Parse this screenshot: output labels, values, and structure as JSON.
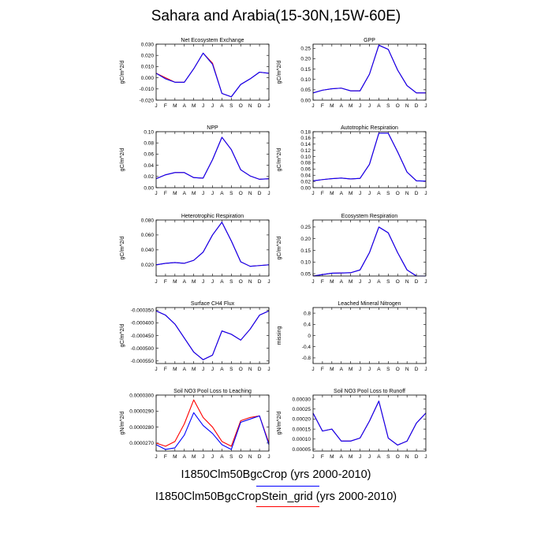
{
  "title": "Sahara and Arabia(15-30N,15W-60E)",
  "legend": [
    {
      "name": "I1850Clm50BgcCrop (yrs 2000-2010)",
      "color": "#0000ff"
    },
    {
      "name": "I1850Clm50BgcCropStein_grid (yrs 2000-2010)",
      "color": "#ff0000"
    }
  ],
  "chart_data": [
    {
      "type": "line",
      "title": "Net Ecosystem Exchange",
      "ylabel": "gC/m^2/d",
      "x": [
        "J",
        "F",
        "M",
        "A",
        "M",
        "J",
        "J",
        "A",
        "S",
        "O",
        "N",
        "D",
        "J"
      ],
      "ylim": [
        -0.02,
        0.03
      ],
      "yticks": [
        -0.02,
        -0.01,
        0.0,
        0.01,
        0.02,
        0.03
      ],
      "ytick_labels": [
        "-0.020",
        "-0.010",
        "0.000",
        "0.010",
        "0.020",
        "0.030"
      ],
      "series": [
        {
          "color": "#ff0000",
          "values": [
            0.004,
            0.0,
            -0.004,
            -0.004,
            0.008,
            0.022,
            0.013,
            -0.014,
            -0.017,
            -0.006,
            -0.001,
            0.005,
            0.004
          ]
        },
        {
          "color": "#0000ff",
          "values": [
            0.004,
            -0.001,
            -0.004,
            -0.004,
            0.008,
            0.022,
            0.012,
            -0.014,
            -0.017,
            -0.006,
            -0.001,
            0.005,
            0.004
          ]
        }
      ]
    },
    {
      "type": "line",
      "title": "GPP",
      "ylabel": "gC/m^2/d",
      "x": [
        "J",
        "F",
        "M",
        "A",
        "M",
        "J",
        "J",
        "A",
        "S",
        "O",
        "N",
        "D",
        "J"
      ],
      "ylim": [
        0.0,
        0.27
      ],
      "yticks": [
        0.0,
        0.05,
        0.1,
        0.15,
        0.2,
        0.25
      ],
      "ytick_labels": [
        "0.00",
        "0.05",
        "0.10",
        "0.15",
        "0.20",
        "0.25"
      ],
      "series": [
        {
          "color": "#ff0000",
          "values": [
            0.035,
            0.048,
            0.055,
            0.058,
            0.045,
            0.045,
            0.125,
            0.265,
            0.245,
            0.145,
            0.07,
            0.035,
            0.035
          ]
        },
        {
          "color": "#0000ff",
          "values": [
            0.035,
            0.048,
            0.055,
            0.058,
            0.045,
            0.045,
            0.125,
            0.265,
            0.245,
            0.145,
            0.07,
            0.035,
            0.035
          ]
        }
      ]
    },
    {
      "type": "line",
      "title": "NPP",
      "ylabel": "gC/m^2/d",
      "x": [
        "J",
        "F",
        "M",
        "A",
        "M",
        "J",
        "J",
        "A",
        "S",
        "O",
        "N",
        "D",
        "J"
      ],
      "ylim": [
        0.0,
        0.1
      ],
      "yticks": [
        0.0,
        0.02,
        0.04,
        0.06,
        0.08,
        0.1
      ],
      "ytick_labels": [
        "0.00",
        "0.02",
        "0.04",
        "0.06",
        "0.08",
        "0.10"
      ],
      "series": [
        {
          "color": "#ff0000",
          "values": [
            0.016,
            0.023,
            0.027,
            0.027,
            0.018,
            0.017,
            0.05,
            0.09,
            0.068,
            0.032,
            0.021,
            0.015,
            0.016
          ]
        },
        {
          "color": "#0000ff",
          "values": [
            0.016,
            0.023,
            0.027,
            0.027,
            0.018,
            0.017,
            0.05,
            0.09,
            0.068,
            0.032,
            0.021,
            0.015,
            0.016
          ]
        }
      ]
    },
    {
      "type": "line",
      "title": "Autotrophic Respiration",
      "ylabel": "gC/m^2/d",
      "x": [
        "J",
        "F",
        "M",
        "A",
        "M",
        "J",
        "J",
        "A",
        "S",
        "O",
        "N",
        "D",
        "J"
      ],
      "ylim": [
        0.0,
        0.18
      ],
      "yticks": [
        0.0,
        0.02,
        0.04,
        0.06,
        0.08,
        0.1,
        0.12,
        0.14,
        0.16,
        0.18
      ],
      "ytick_labels": [
        "0.00",
        "0.02",
        "0.04",
        "0.06",
        "0.08",
        "0.10",
        "0.12",
        "0.14",
        "0.16",
        "0.18"
      ],
      "series": [
        {
          "color": "#ff0000",
          "values": [
            0.022,
            0.026,
            0.029,
            0.031,
            0.028,
            0.03,
            0.075,
            0.175,
            0.175,
            0.115,
            0.05,
            0.022,
            0.021
          ]
        },
        {
          "color": "#0000ff",
          "values": [
            0.022,
            0.026,
            0.029,
            0.031,
            0.028,
            0.03,
            0.075,
            0.175,
            0.175,
            0.115,
            0.05,
            0.022,
            0.021
          ]
        }
      ]
    },
    {
      "type": "line",
      "title": "Heterotrophic Respiration",
      "ylabel": "gC/m^2/d",
      "x": [
        "J",
        "F",
        "M",
        "A",
        "M",
        "J",
        "J",
        "A",
        "S",
        "O",
        "N",
        "D",
        "J"
      ],
      "ylim": [
        0.005,
        0.08
      ],
      "yticks": [
        0.02,
        0.04,
        0.06,
        0.08
      ],
      "ytick_labels": [
        "0.020",
        "0.040",
        "0.060",
        "0.080"
      ],
      "series": [
        {
          "color": "#ff0000",
          "values": [
            0.02,
            0.022,
            0.023,
            0.022,
            0.026,
            0.037,
            0.06,
            0.077,
            0.052,
            0.024,
            0.018,
            0.019,
            0.02
          ]
        },
        {
          "color": "#0000ff",
          "values": [
            0.02,
            0.022,
            0.023,
            0.022,
            0.026,
            0.037,
            0.06,
            0.077,
            0.052,
            0.024,
            0.018,
            0.019,
            0.02
          ]
        }
      ]
    },
    {
      "type": "line",
      "title": "Ecosystem Respiration",
      "ylabel": "gC/m^2/d",
      "x": [
        "J",
        "F",
        "M",
        "A",
        "M",
        "J",
        "J",
        "A",
        "S",
        "O",
        "N",
        "D",
        "J"
      ],
      "ylim": [
        0.04,
        0.28
      ],
      "yticks": [
        0.05,
        0.1,
        0.15,
        0.2,
        0.25
      ],
      "ytick_labels": [
        "0.05",
        "0.10",
        "0.15",
        "0.20",
        "0.25"
      ],
      "series": [
        {
          "color": "#ff0000",
          "values": [
            0.04,
            0.046,
            0.052,
            0.053,
            0.054,
            0.066,
            0.14,
            0.25,
            0.225,
            0.14,
            0.066,
            0.04,
            0.04
          ]
        },
        {
          "color": "#0000ff",
          "values": [
            0.04,
            0.046,
            0.052,
            0.053,
            0.054,
            0.066,
            0.14,
            0.25,
            0.225,
            0.14,
            0.066,
            0.04,
            0.04
          ]
        }
      ]
    },
    {
      "type": "line",
      "title": "Surface CH4 Flux",
      "ylabel": "gC/m^2/d",
      "x": [
        "J",
        "F",
        "M",
        "A",
        "M",
        "J",
        "J",
        "A",
        "S",
        "O",
        "N",
        "D",
        "J"
      ],
      "ylim": [
        -0.00056,
        -0.00034
      ],
      "yticks": [
        -0.00055,
        -0.0005,
        -0.00045,
        -0.0004,
        -0.00035
      ],
      "ytick_labels": [
        "-0.000550",
        "-0.000500",
        "-0.000450",
        "-0.000400",
        "-0.000350"
      ],
      "series": [
        {
          "color": "#ff0000",
          "values": [
            -0.000353,
            -0.00037,
            -0.000405,
            -0.00046,
            -0.000515,
            -0.000545,
            -0.000527,
            -0.000432,
            -0.000445,
            -0.000468,
            -0.000425,
            -0.00037,
            -0.000353
          ]
        },
        {
          "color": "#0000ff",
          "values": [
            -0.000353,
            -0.00037,
            -0.000405,
            -0.00046,
            -0.000515,
            -0.000545,
            -0.000527,
            -0.000432,
            -0.000445,
            -0.000468,
            -0.000425,
            -0.00037,
            -0.000353
          ]
        }
      ]
    },
    {
      "type": "line",
      "title": "Leached Mineral Nitrogen",
      "ylabel": "missing",
      "x": [
        "J",
        "F",
        "M",
        "A",
        "M",
        "J",
        "J",
        "A",
        "S",
        "O",
        "N",
        "D",
        "J"
      ],
      "ylim": [
        -1.0,
        1.0
      ],
      "yticks": [
        -0.8,
        -0.4,
        0.0,
        0.4,
        0.8
      ],
      "ytick_labels": [
        "-0.8",
        "-0.4",
        "0",
        "0.4",
        "0.8"
      ],
      "series": []
    },
    {
      "type": "line",
      "title": "Soil NO3 Pool Loss to Leaching",
      "ylabel": "gN/m^2/d",
      "x": [
        "J",
        "F",
        "M",
        "A",
        "M",
        "J",
        "J",
        "A",
        "S",
        "O",
        "N",
        "D",
        "J"
      ],
      "ylim": [
        2.65e-05,
        3e-05
      ],
      "yticks": [
        2.7e-05,
        2.8e-05,
        2.9e-05,
        3e-05
      ],
      "ytick_labels": [
        "0.0000270",
        "0.0000280",
        "0.0000290",
        "0.0000300"
      ],
      "series": [
        {
          "color": "#ff0000",
          "values": [
            2.7e-05,
            2.68e-05,
            2.71e-05,
            2.82e-05,
            2.97e-05,
            2.86e-05,
            2.8e-05,
            2.71e-05,
            2.68e-05,
            2.84e-05,
            2.86e-05,
            2.87e-05,
            2.7e-05
          ]
        },
        {
          "color": "#0000ff",
          "values": [
            2.69e-05,
            2.66e-05,
            2.67e-05,
            2.75e-05,
            2.89e-05,
            2.81e-05,
            2.76e-05,
            2.69e-05,
            2.66e-05,
            2.83e-05,
            2.85e-05,
            2.87e-05,
            2.69e-05
          ]
        }
      ]
    },
    {
      "type": "line",
      "title": "Soil NO3 Pool Loss to Runoff",
      "ylabel": "gN/m^2/d",
      "x": [
        "J",
        "F",
        "M",
        "A",
        "M",
        "J",
        "J",
        "A",
        "S",
        "O",
        "N",
        "D",
        "J"
      ],
      "ylim": [
        4e-05,
        0.00032
      ],
      "yticks": [
        5e-05,
        0.0001,
        0.00015,
        0.0002,
        0.00025,
        0.0003
      ],
      "ytick_labels": [
        "0.00005",
        "0.00010",
        "0.00015",
        "0.00020",
        "0.00025",
        "0.00030"
      ],
      "series": [
        {
          "color": "#ff0000",
          "values": [
            0.00023,
            0.00014,
            0.00015,
            9e-05,
            9e-05,
            0.000105,
            0.00019,
            0.00029,
            0.000105,
            7e-05,
            9e-05,
            0.00018,
            0.00023
          ]
        },
        {
          "color": "#0000ff",
          "values": [
            0.00023,
            0.00014,
            0.00015,
            9e-05,
            9e-05,
            0.000105,
            0.00019,
            0.00029,
            0.000105,
            7e-05,
            9e-05,
            0.00018,
            0.00023
          ]
        }
      ]
    }
  ]
}
